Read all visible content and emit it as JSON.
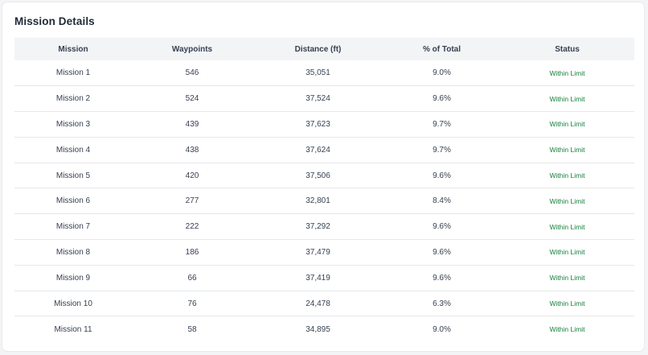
{
  "section": {
    "title": "Mission Details"
  },
  "table": {
    "headers": [
      "Mission",
      "Waypoints",
      "Distance (ft)",
      "% of Total",
      "Status"
    ],
    "rows": [
      {
        "mission": "Mission 1",
        "waypoints": "546",
        "distance": "35,051",
        "percent": "9.0%",
        "status": "Within Limit"
      },
      {
        "mission": "Mission 2",
        "waypoints": "524",
        "distance": "37,524",
        "percent": "9.6%",
        "status": "Within Limit"
      },
      {
        "mission": "Mission 3",
        "waypoints": "439",
        "distance": "37,623",
        "percent": "9.7%",
        "status": "Within Limit"
      },
      {
        "mission": "Mission 4",
        "waypoints": "438",
        "distance": "37,624",
        "percent": "9.7%",
        "status": "Within Limit"
      },
      {
        "mission": "Mission 5",
        "waypoints": "420",
        "distance": "37,506",
        "percent": "9.6%",
        "status": "Within Limit"
      },
      {
        "mission": "Mission 6",
        "waypoints": "277",
        "distance": "32,801",
        "percent": "8.4%",
        "status": "Within Limit"
      },
      {
        "mission": "Mission 7",
        "waypoints": "222",
        "distance": "37,292",
        "percent": "9.6%",
        "status": "Within Limit"
      },
      {
        "mission": "Mission 8",
        "waypoints": "186",
        "distance": "37,479",
        "percent": "9.6%",
        "status": "Within Limit"
      },
      {
        "mission": "Mission 9",
        "waypoints": "66",
        "distance": "37,419",
        "percent": "9.6%",
        "status": "Within Limit"
      },
      {
        "mission": "Mission 10",
        "waypoints": "76",
        "distance": "24,478",
        "percent": "6.3%",
        "status": "Within Limit"
      },
      {
        "mission": "Mission 11",
        "waypoints": "58",
        "distance": "34,895",
        "percent": "9.0%",
        "status": "Within Limit"
      }
    ]
  },
  "colors": {
    "status_ok": "#15803d",
    "header_bg": "#f3f4f6",
    "text": "#374151"
  }
}
